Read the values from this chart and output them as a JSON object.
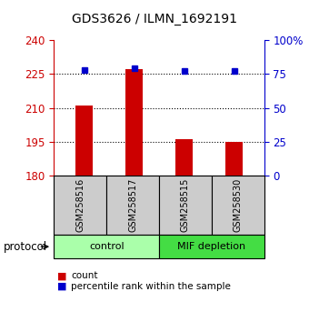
{
  "title": "GDS3626 / ILMN_1692191",
  "samples": [
    "GSM258516",
    "GSM258517",
    "GSM258515",
    "GSM258530"
  ],
  "bar_values": [
    211,
    227,
    196,
    195
  ],
  "percentile_values": [
    78,
    79,
    77,
    77
  ],
  "bar_color": "#cc0000",
  "percentile_color": "#0000cc",
  "ylim_left": [
    180,
    240
  ],
  "ylim_right": [
    0,
    100
  ],
  "yticks_left": [
    180,
    195,
    210,
    225,
    240
  ],
  "yticks_right": [
    0,
    25,
    50,
    75,
    100
  ],
  "ytick_labels_right": [
    "0",
    "25",
    "50",
    "75",
    "100%"
  ],
  "groups": [
    {
      "label": "control",
      "color": "#aaffaa",
      "size": 2
    },
    {
      "label": "MIF depletion",
      "color": "#44dd44",
      "size": 2
    }
  ],
  "protocol_label": "protocol",
  "background_color": "#ffffff",
  "label_bg_color": "#cccccc",
  "bar_width": 0.35,
  "x_positions": [
    0,
    1,
    2,
    3
  ]
}
